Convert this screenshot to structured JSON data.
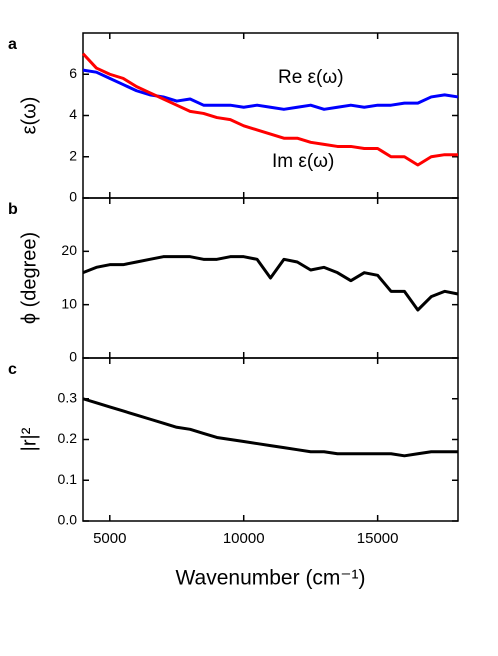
{
  "chart_data": [
    {
      "type": "line",
      "panel_label": "a",
      "ylabel": "ε(ω)",
      "x": [
        4000,
        4500,
        5000,
        5500,
        6000,
        6500,
        7000,
        7500,
        8000,
        8500,
        9000,
        9500,
        10000,
        10500,
        11000,
        11500,
        12000,
        12500,
        13000,
        13500,
        14000,
        14500,
        15000,
        15500,
        16000,
        16500,
        17000,
        17500,
        18000
      ],
      "series": [
        {
          "name": "Re ε(ω)",
          "color": "#0000ff",
          "values": [
            6.2,
            6.1,
            5.8,
            5.5,
            5.2,
            5.0,
            4.9,
            4.7,
            4.8,
            4.5,
            4.5,
            4.5,
            4.4,
            4.5,
            4.4,
            4.3,
            4.4,
            4.5,
            4.3,
            4.4,
            4.5,
            4.4,
            4.5,
            4.5,
            4.6,
            4.6,
            4.9,
            5.0,
            4.9
          ]
        },
        {
          "name": "Im ε(ω)",
          "color": "#ff0000",
          "values": [
            7.0,
            6.3,
            6.0,
            5.8,
            5.4,
            5.1,
            4.8,
            4.5,
            4.2,
            4.1,
            3.9,
            3.8,
            3.5,
            3.3,
            3.1,
            2.9,
            2.9,
            2.7,
            2.6,
            2.5,
            2.5,
            2.4,
            2.4,
            2.0,
            2.0,
            1.6,
            2.0,
            2.1,
            2.1
          ]
        }
      ],
      "xlim": [
        4000,
        18000
      ],
      "ylim": [
        0,
        8
      ],
      "yticks": [
        0,
        2,
        4,
        6
      ]
    },
    {
      "type": "line",
      "panel_label": "b",
      "ylabel": "ϕ  (degree)",
      "x": [
        4000,
        4500,
        5000,
        5500,
        6000,
        6500,
        7000,
        7500,
        8000,
        8500,
        9000,
        9500,
        10000,
        10500,
        11000,
        11500,
        12000,
        12500,
        13000,
        13500,
        14000,
        14500,
        15000,
        15500,
        16000,
        16500,
        17000,
        17500,
        18000
      ],
      "series": [
        {
          "color": "#000000",
          "values": [
            16,
            17,
            17.5,
            17.5,
            18,
            18.5,
            19,
            19,
            19,
            18.5,
            18.5,
            19,
            19,
            18.5,
            15,
            18.5,
            18,
            16.5,
            17,
            16,
            14.5,
            16,
            15.5,
            12.5,
            12.5,
            9,
            11.5,
            12.5,
            12
          ]
        }
      ],
      "xlim": [
        4000,
        18000
      ],
      "ylim": [
        0,
        30
      ],
      "yticks": [
        0,
        10,
        20
      ]
    },
    {
      "type": "line",
      "panel_label": "c",
      "ylabel": "|r|²",
      "xlabel": "Wavenumber (cm⁻¹)",
      "x": [
        4000,
        4500,
        5000,
        5500,
        6000,
        6500,
        7000,
        7500,
        8000,
        8500,
        9000,
        9500,
        10000,
        10500,
        11000,
        11500,
        12000,
        12500,
        13000,
        13500,
        14000,
        14500,
        15000,
        15500,
        16000,
        16500,
        17000,
        17500,
        18000
      ],
      "series": [
        {
          "color": "#000000",
          "values": [
            0.3,
            0.29,
            0.28,
            0.27,
            0.26,
            0.25,
            0.24,
            0.23,
            0.225,
            0.215,
            0.205,
            0.2,
            0.195,
            0.19,
            0.185,
            0.18,
            0.175,
            0.17,
            0.17,
            0.165,
            0.165,
            0.165,
            0.165,
            0.165,
            0.16,
            0.165,
            0.17,
            0.17,
            0.17
          ]
        }
      ],
      "xlim": [
        4000,
        18000
      ],
      "ylim": [
        0,
        0.4
      ],
      "yticks": [
        {
          "value": 0,
          "label": "0.0"
        },
        0.1,
        0.2,
        0.3
      ],
      "xticks": [
        5000,
        10000,
        15000
      ]
    }
  ]
}
